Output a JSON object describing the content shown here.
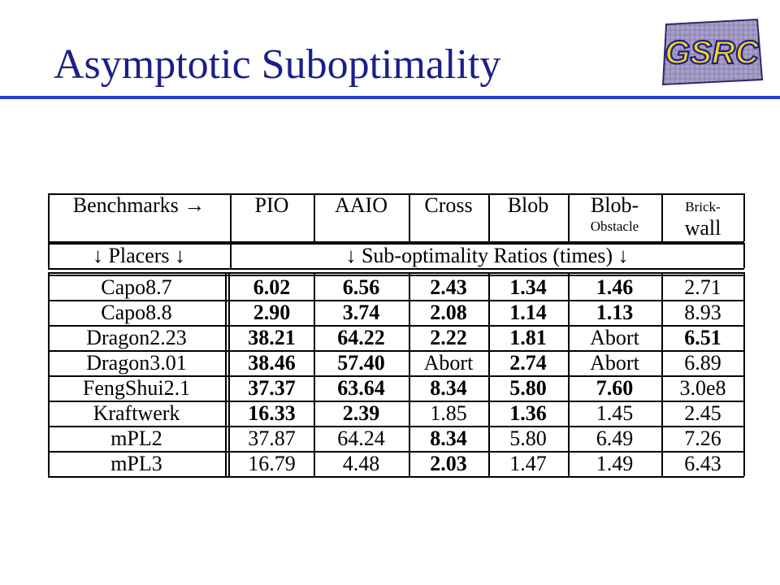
{
  "slide": {
    "title": "Asymptotic Suboptimality"
  },
  "logo": {
    "text": "GSRC"
  },
  "table": {
    "header": {
      "benchmarks_label": "Benchmarks →",
      "columns": [
        {
          "top": "PIO",
          "bottom": ""
        },
        {
          "top": "AAIO",
          "bottom": ""
        },
        {
          "top": "Cross",
          "bottom": ""
        },
        {
          "top": "Blob",
          "bottom": ""
        },
        {
          "top": "Blob-",
          "bottom": "Obstacle"
        },
        {
          "top": "Brick-",
          "bottom": "wall"
        }
      ],
      "placers_label": "↓ Placers ↓",
      "ratios_label": "↓ Sub-optimality Ratios (times) ↓"
    },
    "rows": [
      {
        "placer": "Capo8.7",
        "values": [
          "6.02",
          "6.56",
          "2.43",
          "1.34",
          "1.46",
          "2.71"
        ],
        "bold": [
          true,
          true,
          true,
          true,
          true,
          false
        ]
      },
      {
        "placer": "Capo8.8",
        "values": [
          "2.90",
          "3.74",
          "2.08",
          "1.14",
          "1.13",
          "8.93"
        ],
        "bold": [
          true,
          true,
          true,
          true,
          true,
          false
        ]
      },
      {
        "placer": "Dragon2.23",
        "values": [
          "38.21",
          "64.22",
          "2.22",
          "1.81",
          "Abort",
          "6.51"
        ],
        "bold": [
          true,
          true,
          true,
          true,
          false,
          true
        ]
      },
      {
        "placer": "Dragon3.01",
        "values": [
          "38.46",
          "57.40",
          "Abort",
          "2.74",
          "Abort",
          "6.89"
        ],
        "bold": [
          true,
          true,
          false,
          true,
          false,
          false
        ]
      },
      {
        "placer": "FengShui2.1",
        "values": [
          "37.37",
          "63.64",
          "8.34",
          "5.80",
          "7.60",
          "3.0e8"
        ],
        "bold": [
          true,
          true,
          true,
          true,
          true,
          false
        ]
      },
      {
        "placer": "Kraftwerk",
        "values": [
          "16.33",
          "2.39",
          "1.85",
          "1.36",
          "1.45",
          "2.45"
        ],
        "bold": [
          true,
          true,
          false,
          true,
          false,
          false
        ]
      },
      {
        "placer": "mPL2",
        "values": [
          "37.87",
          "64.24",
          "8.34",
          "5.80",
          "6.49",
          "7.26"
        ],
        "bold": [
          false,
          false,
          true,
          false,
          false,
          false
        ]
      },
      {
        "placer": "mPL3",
        "values": [
          "16.79",
          "4.48",
          "2.03",
          "1.47",
          "1.49",
          "6.43"
        ],
        "bold": [
          false,
          false,
          true,
          false,
          false,
          false
        ]
      }
    ]
  }
}
